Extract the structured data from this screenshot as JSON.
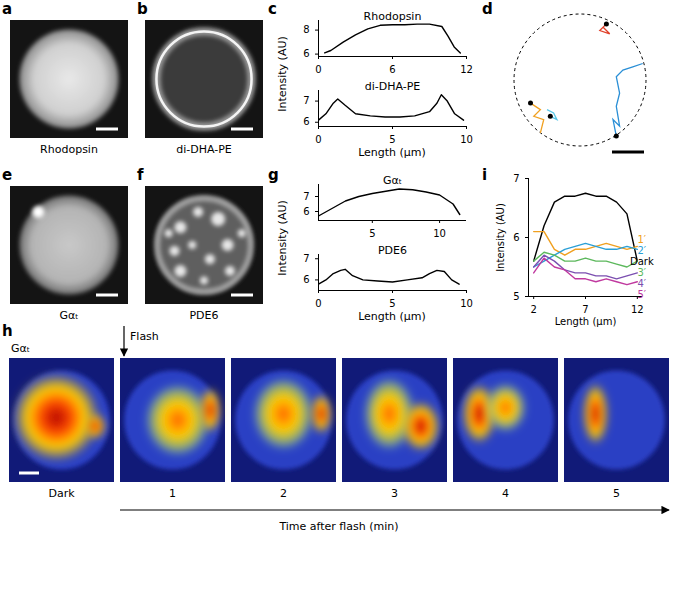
{
  "images": [
    {
      "panel": "a",
      "caption": "Rhodopsin"
    },
    {
      "panel": "b",
      "caption": "di-DHA-PE"
    },
    {
      "panel": "e",
      "caption": "Gαₜ"
    },
    {
      "panel": "f",
      "caption": "PDE6"
    }
  ],
  "chart_data": [
    {
      "panel": "c",
      "type": "line",
      "title": "Rhodopsin",
      "color": "#000000",
      "x": [
        0.5,
        1,
        2,
        3,
        4,
        5,
        6,
        7,
        8,
        9,
        10,
        10.5,
        11,
        11.5
      ],
      "values": [
        6.1,
        6.3,
        7.0,
        7.6,
        8.1,
        8.4,
        8.45,
        8.45,
        8.5,
        8.5,
        8.3,
        7.5,
        6.6,
        6.1
      ],
      "xlim": [
        0,
        12
      ],
      "xticks": [
        0,
        6,
        12
      ],
      "ylim": [
        5.8,
        8.8
      ],
      "yticks": [
        6,
        8
      ]
    },
    {
      "panel": "c",
      "type": "line",
      "title": "di-DHA-PE",
      "color": "#000000",
      "xlabel": "Length (μm)",
      "ylabel": "Intensity (AU)",
      "x": [
        0,
        0.5,
        1,
        1.3,
        1.8,
        2.5,
        3.5,
        4.5,
        5.5,
        6.5,
        7.5,
        8,
        8.3,
        8.7,
        9.2,
        9.8
      ],
      "values": [
        6.1,
        6.4,
        6.9,
        7.1,
        6.8,
        6.4,
        6.3,
        6.25,
        6.25,
        6.3,
        6.5,
        6.9,
        7.3,
        7.0,
        6.4,
        6.1
      ],
      "xlim": [
        0,
        10
      ],
      "xticks": [
        0,
        5,
        10
      ],
      "ylim": [
        5.8,
        7.5
      ],
      "yticks": [
        6,
        7
      ]
    },
    {
      "panel": "g",
      "type": "line",
      "title": "Gαₜ",
      "color": "#000000",
      "x": [
        1,
        2,
        3,
        4,
        5,
        6,
        7,
        8,
        9,
        10,
        11,
        11.5
      ],
      "values": [
        5.7,
        6.2,
        6.7,
        7.0,
        7.2,
        7.35,
        7.5,
        7.45,
        7.3,
        7.1,
        6.5,
        5.8
      ],
      "xlim": [
        1,
        12
      ],
      "xticks": [
        5,
        10
      ],
      "ylim": [
        5.4,
        7.8
      ],
      "yticks": [
        6,
        7
      ]
    },
    {
      "panel": "g",
      "type": "line",
      "title": "PDE6",
      "color": "#000000",
      "xlabel": "Length (μm)",
      "ylabel": "Intensity (AU)",
      "x": [
        0,
        0.5,
        1,
        1.5,
        1.8,
        2.3,
        3,
        4,
        5,
        6,
        7,
        7.5,
        8,
        8.5,
        9,
        9.5
      ],
      "values": [
        5.8,
        6.0,
        6.3,
        6.45,
        6.5,
        6.2,
        6.0,
        5.95,
        5.9,
        6.0,
        6.1,
        6.3,
        6.45,
        6.4,
        6.0,
        5.8
      ],
      "xlim": [
        0,
        10
      ],
      "xticks": [
        0,
        5,
        10
      ],
      "ylim": [
        5.5,
        7.2
      ],
      "yticks": [
        6,
        7
      ]
    },
    {
      "panel": "i",
      "type": "line",
      "xlabel": "Length (μm)",
      "ylabel": "Intensity (AU)",
      "x": [
        2,
        3,
        4,
        5,
        6,
        7,
        8,
        9,
        10,
        11,
        12
      ],
      "series": [
        {
          "name": "Dark",
          "color": "#000000",
          "values": [
            5.6,
            6.2,
            6.6,
            6.7,
            6.7,
            6.75,
            6.7,
            6.7,
            6.6,
            6.4,
            5.6
          ]
        },
        {
          "name": "1′",
          "color": "#f0a020",
          "values": [
            6.1,
            6.1,
            5.8,
            5.7,
            5.8,
            5.8,
            5.85,
            5.9,
            5.85,
            5.8,
            5.85
          ]
        },
        {
          "name": "2′",
          "color": "#2a9fd6",
          "values": [
            5.5,
            5.6,
            5.7,
            5.8,
            5.85,
            5.9,
            5.85,
            5.8,
            5.8,
            5.85,
            5.8
          ]
        },
        {
          "name": "3′",
          "color": "#5cb85c",
          "values": [
            5.6,
            5.75,
            5.7,
            5.6,
            5.6,
            5.65,
            5.6,
            5.6,
            5.55,
            5.5,
            5.6
          ]
        },
        {
          "name": "4′",
          "color": "#7b4fb0",
          "values": [
            5.5,
            5.7,
            5.6,
            5.45,
            5.4,
            5.4,
            5.35,
            5.35,
            5.3,
            5.35,
            5.4
          ]
        },
        {
          "name": "5′",
          "color": "#c0399f",
          "values": [
            5.4,
            5.65,
            5.5,
            5.45,
            5.3,
            5.3,
            5.25,
            5.3,
            5.25,
            5.2,
            5.25
          ]
        }
      ],
      "xlim": [
        1.5,
        12.5
      ],
      "xticks": [
        2,
        7,
        12
      ],
      "ylim": [
        5,
        7
      ],
      "yticks": [
        5,
        6,
        7
      ]
    }
  ],
  "trajectories": {
    "panel": "d",
    "tracks": [
      {
        "color": "#e0402a",
        "points": [
          [
            0.4,
            0.85
          ],
          [
            0.3,
            0.75
          ],
          [
            0.45,
            0.7
          ],
          [
            0.35,
            0.8
          ]
        ]
      },
      {
        "color": "#2a8fd6",
        "points": [
          [
            0.55,
            -0.85
          ],
          [
            0.5,
            -0.6
          ],
          [
            0.6,
            -0.7
          ],
          [
            0.55,
            -0.4
          ],
          [
            0.6,
            -0.2
          ],
          [
            0.55,
            0.05
          ],
          [
            0.65,
            0.15
          ],
          [
            0.8,
            0.2
          ],
          [
            0.95,
            0.25
          ]
        ]
      },
      {
        "color": "#f0a020",
        "points": [
          [
            -0.75,
            -0.35
          ],
          [
            -0.6,
            -0.45
          ],
          [
            -0.7,
            -0.55
          ],
          [
            -0.55,
            -0.6
          ],
          [
            -0.6,
            -0.8
          ]
        ]
      },
      {
        "color": "#5bc8e8",
        "points": [
          [
            -0.45,
            -0.55
          ],
          [
            -0.35,
            -0.6
          ],
          [
            -0.4,
            -0.5
          ],
          [
            -0.5,
            -0.45
          ]
        ]
      }
    ]
  },
  "time_series": {
    "panel": "h",
    "label": "Gαₜ",
    "marker": "Flash",
    "frames": [
      "Dark",
      "1",
      "2",
      "3",
      "4",
      "5"
    ],
    "axis_label": "Time after flash (min)"
  }
}
